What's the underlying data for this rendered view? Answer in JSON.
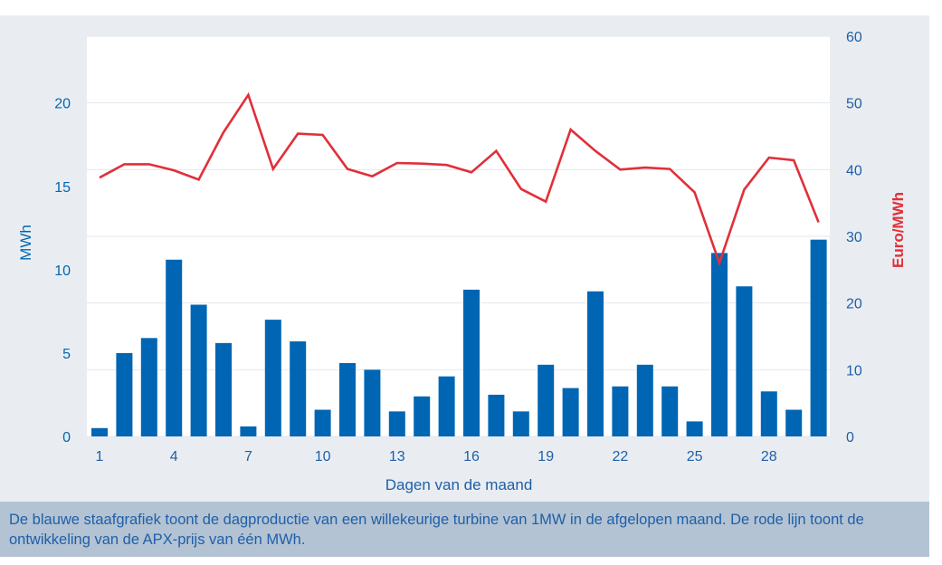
{
  "chart_data": {
    "type": "bar+line",
    "xlabel": "Dagen van de maand",
    "y_left": {
      "label": "MWh",
      "lim": [
        0,
        24
      ],
      "ticks": [
        0,
        5,
        10,
        15,
        20
      ],
      "color": "#0066b3"
    },
    "y_right": {
      "label": "Euro/MWh",
      "lim": [
        0,
        60
      ],
      "ticks": [
        0,
        10,
        20,
        30,
        40,
        50,
        60
      ],
      "color": "#e0303a"
    },
    "x_ticks": [
      1,
      4,
      7,
      10,
      13,
      16,
      19,
      22,
      25,
      28
    ],
    "days": [
      1,
      2,
      3,
      4,
      5,
      6,
      7,
      8,
      9,
      10,
      11,
      12,
      13,
      14,
      15,
      16,
      17,
      18,
      19,
      20,
      21,
      22,
      23,
      24,
      25,
      26,
      27,
      28,
      29,
      30
    ],
    "series": [
      {
        "name": "",
        "type": "bar",
        "axis": "left",
        "color": "#0066b3",
        "values": [
          0.5,
          5.0,
          5.9,
          10.6,
          7.9,
          5.6,
          0.6,
          7.0,
          5.7,
          1.6,
          4.4,
          4.0,
          1.5,
          2.4,
          3.6,
          8.8,
          2.5,
          1.5,
          4.3,
          2.9,
          8.7,
          3.0,
          4.3,
          3.0,
          0.9,
          11.0,
          9.0,
          2.7,
          1.6,
          11.8
        ]
      },
      {
        "name": "",
        "type": "line",
        "axis": "right",
        "color": "#e0303a",
        "values": [
          38.8,
          40.8,
          40.8,
          39.9,
          38.5,
          45.6,
          51.2,
          40.1,
          45.4,
          45.2,
          40.1,
          39.0,
          41.0,
          40.9,
          40.7,
          39.6,
          42.8,
          37.1,
          35.2,
          46.0,
          42.8,
          40.0,
          40.3,
          40.1,
          36.6,
          26.0,
          37.0,
          41.8,
          41.4,
          32.1
        ]
      }
    ],
    "grid": true,
    "legend": "none"
  },
  "caption": "De blauwe staafgrafiek toont de dagproductie van een willekeurige turbine van 1MW in de afgelopen maand. De rode lijn toont de ontwikkeling van de APX-prijs van één MWh."
}
